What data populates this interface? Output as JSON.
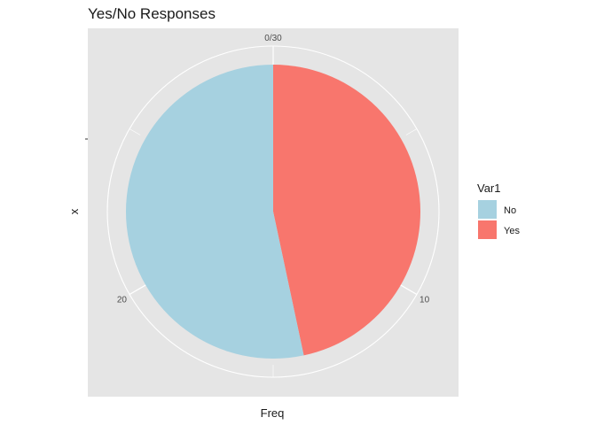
{
  "chart_data": {
    "type": "pie",
    "title": "Yes/No Responses",
    "xlabel": "Freq",
    "ylabel": "x",
    "total": 30,
    "theta_ticks": [
      "0/30",
      "10",
      "20"
    ],
    "theta_tick_values": [
      0,
      10,
      20
    ],
    "grid": true,
    "legend": {
      "title": "Var1",
      "position": "right"
    },
    "slices": [
      {
        "label": "Yes",
        "value": 14,
        "color": "#F8766D"
      },
      {
        "label": "No",
        "value": 16,
        "color": "#A6D1E0"
      }
    ],
    "legend_entries": [
      {
        "label": "No",
        "color": "#A6D1E0"
      },
      {
        "label": "Yes",
        "color": "#F8766D"
      }
    ]
  },
  "colors": {
    "panel_background": "#E5E5E5",
    "grid": "#FFFFFF"
  }
}
